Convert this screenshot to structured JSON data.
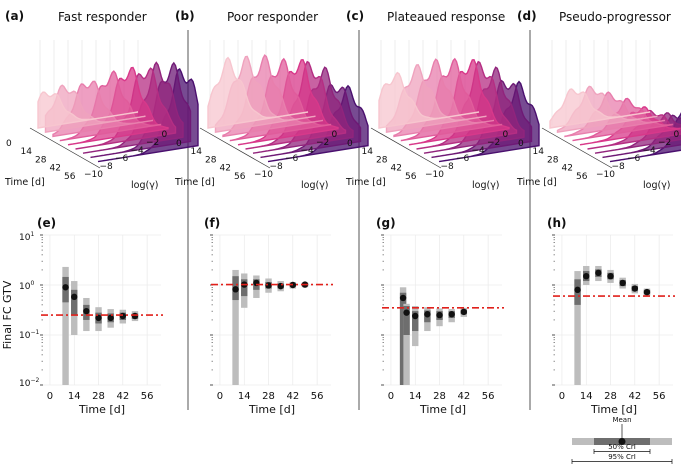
{
  "colors": {
    "median": "#111111",
    "ci50": "#6e6e6e",
    "ci95": "#bdbdbd",
    "reference_line": "#e0201b",
    "ridge_light": "#f7c6cf",
    "ridge_mid": "#d8388a",
    "ridge_dark": "#4a0f6e",
    "separator": "#555555",
    "grid": "#e6e6e6"
  },
  "chart_data": [
    {
      "type": "ridgeline-3d",
      "panel": "(a)",
      "title": "Fast responder",
      "xlabel": "Time [d]",
      "ylabel": "log(γ)",
      "time_ticks": [
        "0",
        "14",
        "28",
        "42",
        "56"
      ],
      "gamma_ticks": [
        "−10",
        "−8",
        "−6",
        "−4",
        "−2",
        "0"
      ],
      "series": [
        {
          "time": 0,
          "peak_log_gamma": -9.0,
          "relative_height": 0.45
        },
        {
          "time": 7,
          "peak_log_gamma": -8.0,
          "relative_height": 0.55
        },
        {
          "time": 14,
          "peak_log_gamma": -6.5,
          "relative_height": 0.65
        },
        {
          "time": 21,
          "peak_log_gamma": -5.0,
          "relative_height": 0.75
        },
        {
          "time": 28,
          "peak_log_gamma": -4.0,
          "relative_height": 0.85
        },
        {
          "time": 35,
          "peak_log_gamma": -3.0,
          "relative_height": 0.9
        },
        {
          "time": 42,
          "peak_log_gamma": -2.5,
          "relative_height": 0.95
        },
        {
          "time": 49,
          "peak_log_gamma": -2.0,
          "relative_height": 1.0
        },
        {
          "time": 56,
          "peak_log_gamma": -1.5,
          "relative_height": 1.0
        }
      ]
    },
    {
      "type": "ridgeline-3d",
      "panel": "(b)",
      "title": "Poor responder",
      "xlabel": "Time [d]",
      "ylabel": "log(γ)",
      "time_ticks": [
        "0",
        "14",
        "28",
        "42",
        "56"
      ],
      "gamma_ticks": [
        "−10",
        "−8",
        "−6",
        "−4",
        "−2",
        "0"
      ],
      "series": [
        {
          "time": 0,
          "peak_log_gamma": -8.0,
          "relative_height": 0.8
        },
        {
          "time": 7,
          "peak_log_gamma": -7.0,
          "relative_height": 0.85
        },
        {
          "time": 14,
          "peak_log_gamma": -6.0,
          "relative_height": 0.9
        },
        {
          "time": 21,
          "peak_log_gamma": -5.0,
          "relative_height": 0.9
        },
        {
          "time": 28,
          "peak_log_gamma": -4.0,
          "relative_height": 0.95
        },
        {
          "time": 35,
          "peak_log_gamma": -3.5,
          "relative_height": 0.95
        },
        {
          "time": 42,
          "peak_log_gamma": -3.0,
          "relative_height": 0.9
        },
        {
          "time": 49,
          "peak_log_gamma": -2.5,
          "relative_height": 0.8
        },
        {
          "time": 56,
          "peak_log_gamma": -2.0,
          "relative_height": 0.75
        }
      ]
    },
    {
      "type": "ridgeline-3d",
      "panel": "(c)",
      "title": "Plateaued response",
      "xlabel": "Time [d]",
      "ylabel": "log(γ)",
      "time_ticks": [
        "0",
        "14",
        "28",
        "42",
        "56"
      ],
      "gamma_ticks": [
        "−10",
        "−8",
        "−6",
        "−4",
        "−2",
        "0"
      ],
      "series": [
        {
          "time": 0,
          "peak_log_gamma": -8.5,
          "relative_height": 0.65
        },
        {
          "time": 7,
          "peak_log_gamma": -7.0,
          "relative_height": 0.75
        },
        {
          "time": 14,
          "peak_log_gamma": -6.0,
          "relative_height": 0.85
        },
        {
          "time": 21,
          "peak_log_gamma": -5.0,
          "relative_height": 0.9
        },
        {
          "time": 28,
          "peak_log_gamma": -4.0,
          "relative_height": 0.95
        },
        {
          "time": 35,
          "peak_log_gamma": -3.5,
          "relative_height": 0.95
        },
        {
          "time": 42,
          "peak_log_gamma": -3.0,
          "relative_height": 0.9
        },
        {
          "time": 49,
          "peak_log_gamma": -2.5,
          "relative_height": 0.85
        },
        {
          "time": 56,
          "peak_log_gamma": -2.0,
          "relative_height": 0.8
        }
      ]
    },
    {
      "type": "ridgeline-3d",
      "panel": "(d)",
      "title": "Pseudo-progressor",
      "xlabel": "Time [d]",
      "ylabel": "log(γ)",
      "time_ticks": [
        "0",
        "14",
        "28",
        "42",
        "56"
      ],
      "gamma_ticks": [
        "−10",
        "−8",
        "−6",
        "−4",
        "−2",
        "0"
      ],
      "series": [
        {
          "time": 0,
          "peak_log_gamma": -7.5,
          "relative_height": 0.45
        },
        {
          "time": 7,
          "peak_log_gamma": -6.5,
          "relative_height": 0.5
        },
        {
          "time": 14,
          "peak_log_gamma": -5.5,
          "relative_height": 0.45
        },
        {
          "time": 21,
          "peak_log_gamma": -4.5,
          "relative_height": 0.4
        },
        {
          "time": 28,
          "peak_log_gamma": -4.0,
          "relative_height": 0.35
        },
        {
          "time": 35,
          "peak_log_gamma": -3.5,
          "relative_height": 0.35
        },
        {
          "time": 42,
          "peak_log_gamma": -3.0,
          "relative_height": 0.35
        },
        {
          "time": 49,
          "peak_log_gamma": -2.5,
          "relative_height": 0.4
        },
        {
          "time": 56,
          "peak_log_gamma": -1.5,
          "relative_height": 0.9
        }
      ]
    },
    {
      "type": "interval",
      "panel": "(e)",
      "xlabel": "Time [d]",
      "ylabel": "Final FC GTV",
      "yscale": "log",
      "ylim": [
        0.01,
        10
      ],
      "xlim": [
        -4,
        64
      ],
      "xticks": [
        0,
        14,
        28,
        42,
        56
      ],
      "xtick_labels": [
        "0",
        "14",
        "28",
        "42",
        "56"
      ],
      "reference_value": 0.25,
      "points": [
        {
          "t": 9,
          "mean": 0.9,
          "ci50": [
            0.45,
            1.45
          ],
          "ci95": [
            0.01,
            2.3
          ]
        },
        {
          "t": 14,
          "mean": 0.58,
          "ci50": [
            0.25,
            0.8
          ],
          "ci95": [
            0.1,
            1.2
          ]
        },
        {
          "t": 21,
          "mean": 0.3,
          "ci50": [
            0.2,
            0.4
          ],
          "ci95": [
            0.12,
            0.55
          ]
        },
        {
          "t": 28,
          "mean": 0.22,
          "ci50": [
            0.17,
            0.28
          ],
          "ci95": [
            0.12,
            0.36
          ]
        },
        {
          "t": 35,
          "mean": 0.22,
          "ci50": [
            0.18,
            0.27
          ],
          "ci95": [
            0.14,
            0.33
          ]
        },
        {
          "t": 42,
          "mean": 0.24,
          "ci50": [
            0.2,
            0.28
          ],
          "ci95": [
            0.17,
            0.32
          ]
        },
        {
          "t": 49,
          "mean": 0.24,
          "ci50": [
            0.21,
            0.27
          ],
          "ci95": [
            0.19,
            0.3
          ]
        }
      ]
    },
    {
      "type": "interval",
      "panel": "(f)",
      "xlabel": "Time [d]",
      "ylabel": "",
      "yscale": "log",
      "ylim": [
        0.01,
        10
      ],
      "xlim": [
        -4,
        64
      ],
      "xticks": [
        0,
        14,
        28,
        42,
        56
      ],
      "xtick_labels": [
        "0",
        "14",
        "28",
        "42",
        "56"
      ],
      "reference_value": 1.02,
      "points": [
        {
          "t": 9,
          "mean": 0.82,
          "ci50": [
            0.5,
            1.5
          ],
          "ci95": [
            0.01,
            2.0
          ]
        },
        {
          "t": 14,
          "mean": 1.02,
          "ci50": [
            0.6,
            1.3
          ],
          "ci95": [
            0.35,
            1.7
          ]
        },
        {
          "t": 21,
          "mean": 1.1,
          "ci50": [
            0.8,
            1.3
          ],
          "ci95": [
            0.55,
            1.55
          ]
        },
        {
          "t": 28,
          "mean": 0.98,
          "ci50": [
            0.85,
            1.15
          ],
          "ci95": [
            0.7,
            1.35
          ]
        },
        {
          "t": 35,
          "mean": 0.95,
          "ci50": [
            0.85,
            1.08
          ],
          "ci95": [
            0.75,
            1.2
          ]
        },
        {
          "t": 42,
          "mean": 1.0,
          "ci50": [
            0.92,
            1.08
          ],
          "ci95": [
            0.85,
            1.15
          ]
        },
        {
          "t": 49,
          "mean": 1.02,
          "ci50": [
            0.95,
            1.08
          ],
          "ci95": [
            0.9,
            1.12
          ]
        }
      ]
    },
    {
      "type": "interval",
      "panel": "(g)",
      "xlabel": "Time [d]",
      "ylabel": "",
      "yscale": "log",
      "ylim": [
        0.01,
        10
      ],
      "xlim": [
        -4,
        64
      ],
      "xticks": [
        0,
        14,
        28,
        42,
        56
      ],
      "xtick_labels": [
        "0",
        "14",
        "28",
        "42",
        "56"
      ],
      "reference_value": 0.35,
      "points": [
        {
          "t": 7,
          "mean": 0.55,
          "ci50": [
            0.01,
            0.7
          ],
          "ci95": [
            0.01,
            0.9
          ]
        },
        {
          "t": 9,
          "mean": 0.28,
          "ci50": [
            0.1,
            0.38
          ],
          "ci95": [
            0.01,
            0.42
          ]
        },
        {
          "t": 14,
          "mean": 0.24,
          "ci50": [
            0.12,
            0.3
          ],
          "ci95": [
            0.06,
            0.38
          ]
        },
        {
          "t": 21,
          "mean": 0.26,
          "ci50": [
            0.18,
            0.31
          ],
          "ci95": [
            0.12,
            0.36
          ]
        },
        {
          "t": 28,
          "mean": 0.25,
          "ci50": [
            0.2,
            0.3
          ],
          "ci95": [
            0.15,
            0.34
          ]
        },
        {
          "t": 35,
          "mean": 0.26,
          "ci50": [
            0.22,
            0.3
          ],
          "ci95": [
            0.18,
            0.33
          ]
        },
        {
          "t": 42,
          "mean": 0.29,
          "ci50": [
            0.26,
            0.32
          ],
          "ci95": [
            0.23,
            0.35
          ]
        }
      ]
    },
    {
      "type": "interval",
      "panel": "(h)",
      "xlabel": "Time [d]",
      "ylabel": "",
      "yscale": "log",
      "ylim": [
        0.01,
        10
      ],
      "xlim": [
        -4,
        64
      ],
      "xticks": [
        0,
        14,
        28,
        42,
        56
      ],
      "xtick_labels": [
        "0",
        "14",
        "28",
        "42",
        "56"
      ],
      "reference_value": 0.6,
      "points": [
        {
          "t": 9,
          "mean": 0.8,
          "ci50": [
            0.4,
            1.3
          ],
          "ci95": [
            0.01,
            1.9
          ]
        },
        {
          "t": 14,
          "mean": 1.5,
          "ci50": [
            1.2,
            1.9
          ],
          "ci95": [
            1.0,
            2.4
          ]
        },
        {
          "t": 21,
          "mean": 1.75,
          "ci50": [
            1.45,
            2.05
          ],
          "ci95": [
            1.2,
            2.4
          ]
        },
        {
          "t": 28,
          "mean": 1.5,
          "ci50": [
            1.3,
            1.75
          ],
          "ci95": [
            1.1,
            2.0
          ]
        },
        {
          "t": 35,
          "mean": 1.1,
          "ci50": [
            0.95,
            1.25
          ],
          "ci95": [
            0.85,
            1.4
          ]
        },
        {
          "t": 42,
          "mean": 0.85,
          "ci50": [
            0.75,
            0.95
          ],
          "ci95": [
            0.68,
            1.05
          ]
        },
        {
          "t": 49,
          "mean": 0.72,
          "ci50": [
            0.65,
            0.8
          ],
          "ci95": [
            0.6,
            0.85
          ]
        }
      ]
    }
  ],
  "y_tick_labels": [
    "10",
    "10",
    "10",
    "10"
  ],
  "y_tick_exponents": [
    "1",
    "0",
    "−1",
    "−2"
  ],
  "legend": {
    "mean_label": "Mean",
    "ci50_label": "50% CrI",
    "ci95_label": "95% CrI"
  }
}
